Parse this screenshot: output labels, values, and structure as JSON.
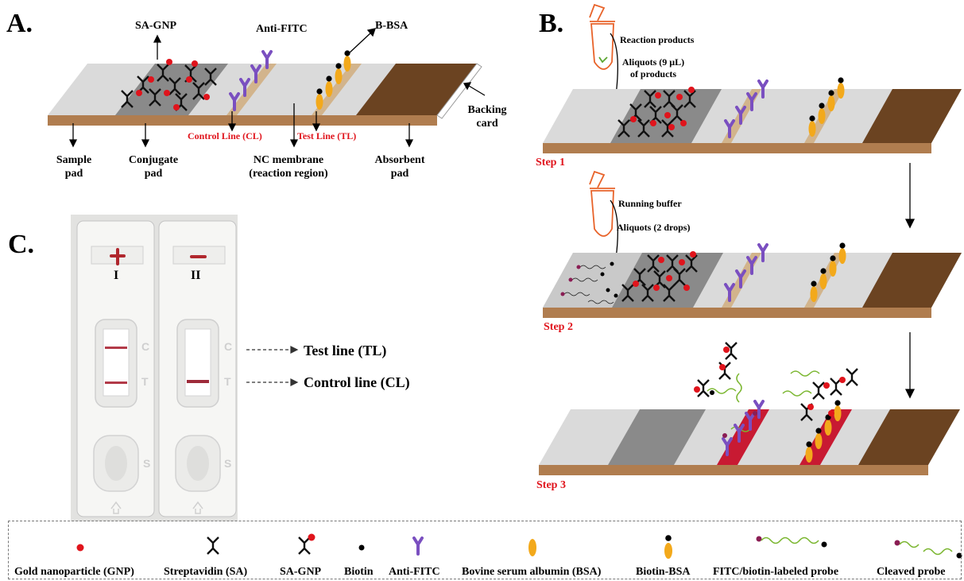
{
  "panel_a": {
    "letter": "A.",
    "sa_gnp": "SA-GNP",
    "anti_fitc": "Anti-FITC",
    "b_bsa": "B-BSA",
    "backing_card": [
      "Backing",
      "card"
    ],
    "control_line": "Control Line (CL)",
    "test_line": "Test Line (TL)",
    "sample_pad": [
      "Sample",
      "pad"
    ],
    "conjugate_pad": [
      "Conjugate",
      "pad"
    ],
    "nc_membrane": [
      "NC membrane",
      "(reaction region)"
    ],
    "absorbent_pad": [
      "Absorbent",
      "pad"
    ]
  },
  "panel_b": {
    "letter": "B.",
    "reaction_products": "Reaction products",
    "aliquots_products": [
      "Aliquots (9 μL)",
      "of products"
    ],
    "step1": "Step 1",
    "running_buffer": "Running buffer",
    "aliquots_drops": "Aliquots (2 drops)",
    "step2": "Step 2",
    "step3": "Step 3"
  },
  "panel_c": {
    "letter": "C.",
    "strip1": "I",
    "strip2": "II",
    "test_line": "Test line (TL)",
    "control_line": "Control line (CL)",
    "c_mark": "C",
    "t_mark": "T",
    "s_mark": "S"
  },
  "legend": {
    "gnp": "Gold nanoparticle (GNP)",
    "sa": "Streptavidin (SA)",
    "sa_gnp": "SA-GNP",
    "biotin": "Biotin",
    "anti_fitc": "Anti-FITC",
    "bsa": "Bovine serum albumin (BSA)",
    "biotin_bsa": "Biotin-BSA",
    "probe": "FITC/biotin-labeled probe",
    "cleaved": "Cleaved probe"
  },
  "colors": {
    "gnp_red": "#e0141c",
    "anti_fitc_purple": "#7a4fc0",
    "bsa_orange": "#f3a91b",
    "absorbent_brown": "#6b4321",
    "backing_tan": "#b07d4f",
    "probe_green": "#7ab62f",
    "fitc_maroon": "#8a1d54",
    "reaction_red": "#c81a32"
  }
}
